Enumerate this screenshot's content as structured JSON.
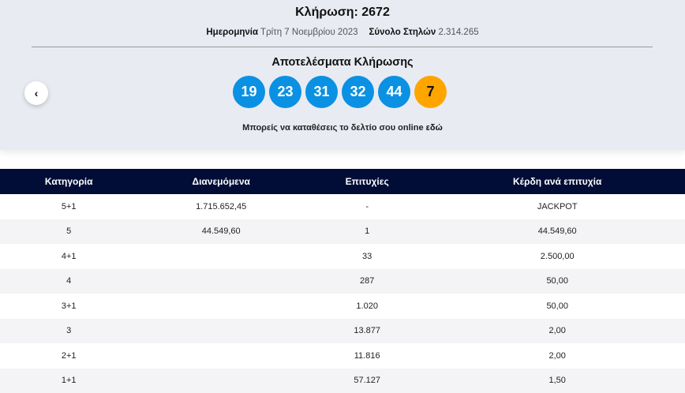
{
  "draw": {
    "title": "Κλήρωση: 2672",
    "date_label": "Ημερομηνία",
    "date_value": "Τρίτη 7 Νοεμβρίου 2023",
    "columns_label": "Σύνολο Στηλών",
    "columns_value": "2.314.265"
  },
  "results": {
    "title": "Αποτελέσματα Κλήρωσης",
    "numbers": [
      "19",
      "23",
      "31",
      "32",
      "44"
    ],
    "bonus": "7",
    "online_text": "Μπορείς να καταθέσεις το δελτίο σου online ",
    "online_link": "εδώ"
  },
  "nav": {
    "prev_icon": "chevron-left-icon",
    "prev_glyph": "‹"
  },
  "colors": {
    "ball": "#0a91e3",
    "bonus": "#fea500",
    "header": "#010d36"
  },
  "table": {
    "headers": [
      "Κατηγορία",
      "Διανεμόμενα",
      "Επιτυχίες",
      "Κέρδη ανά επιτυχία"
    ],
    "rows": [
      [
        "5+1",
        "1.715.652,45",
        "-",
        "JACKPOT"
      ],
      [
        "5",
        "44.549,60",
        "1",
        "44.549,60"
      ],
      [
        "4+1",
        "",
        "33",
        "2.500,00"
      ],
      [
        "4",
        "",
        "287",
        "50,00"
      ],
      [
        "3+1",
        "",
        "1.020",
        "50,00"
      ],
      [
        "3",
        "",
        "13.877",
        "2,00"
      ],
      [
        "2+1",
        "",
        "11.816",
        "2,00"
      ],
      [
        "1+1",
        "",
        "57.127",
        "1,50"
      ]
    ]
  }
}
